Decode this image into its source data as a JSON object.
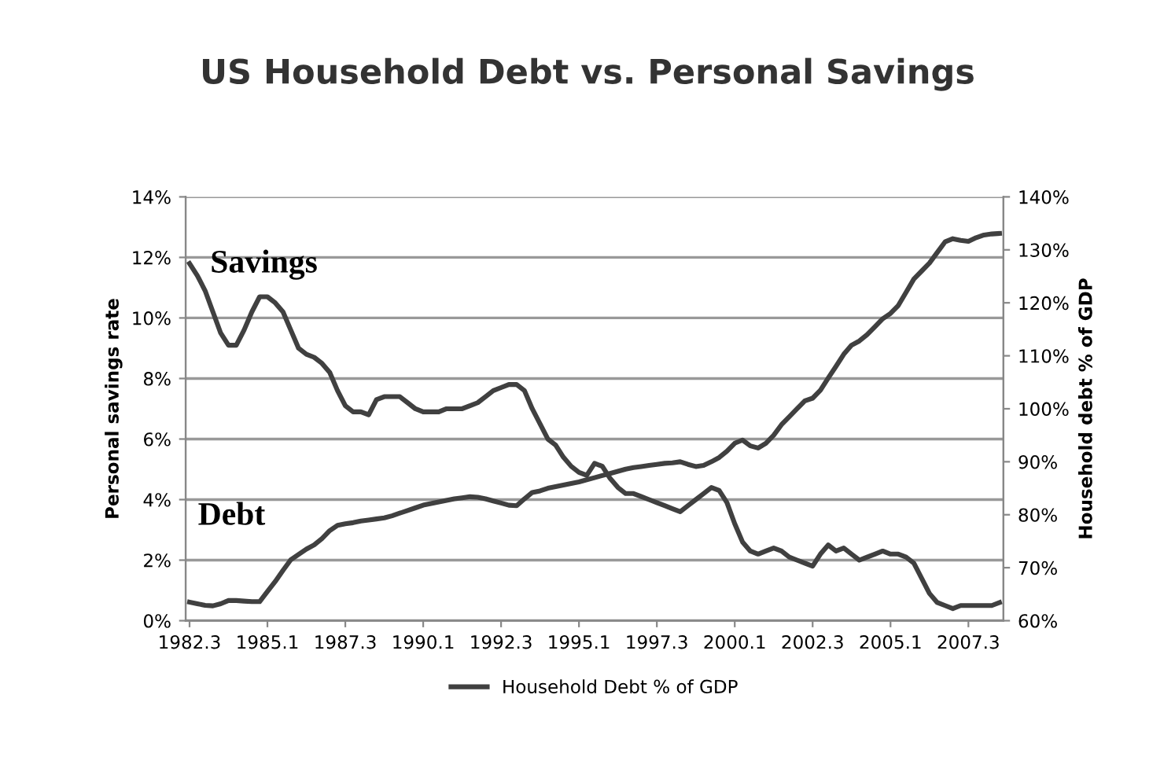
{
  "chart_data": {
    "type": "line",
    "title": "US Household Debt vs. Personal Savings",
    "ylabel": "Personal savings rate",
    "y2label": "Household debt % of GDP",
    "annotations": [
      "Savings",
      "Debt"
    ],
    "categories": [
      "1982.3",
      null,
      null,
      null,
      null,
      null,
      null,
      null,
      null,
      null,
      "1985.1",
      null,
      null,
      null,
      null,
      null,
      null,
      null,
      null,
      null,
      "1987.3",
      null,
      null,
      null,
      null,
      null,
      null,
      null,
      null,
      null,
      "1990.1",
      null,
      null,
      null,
      null,
      null,
      null,
      null,
      null,
      null,
      "1992.3",
      null,
      null,
      null,
      null,
      null,
      null,
      null,
      null,
      null,
      "1995.1",
      null,
      null,
      null,
      null,
      null,
      null,
      null,
      null,
      null,
      "1997.3",
      null,
      null,
      null,
      null,
      null,
      null,
      null,
      null,
      null,
      "2000.1",
      null,
      null,
      null,
      null,
      null,
      null,
      null,
      null,
      null,
      "2002.3",
      null,
      null,
      null,
      null,
      null,
      null,
      null,
      null,
      null,
      "2005.1",
      null,
      null,
      null,
      null,
      null,
      null,
      null,
      null,
      null,
      "2007.3",
      null,
      null,
      null,
      null
    ],
    "ylim": [
      0,
      14
    ],
    "yticks": [
      {
        "value": 0,
        "label": "0%"
      },
      {
        "value": 2,
        "label": "2%"
      },
      {
        "value": 4,
        "label": "4%"
      },
      {
        "value": 6,
        "label": "6%"
      },
      {
        "value": 8,
        "label": "8%"
      },
      {
        "value": 10,
        "label": "10%"
      },
      {
        "value": 12,
        "label": "12%"
      },
      {
        "value": 14,
        "label": "14%"
      }
    ],
    "y2lim": [
      60,
      140
    ],
    "y2ticks": [
      {
        "value": 60,
        "label": "60%"
      },
      {
        "value": 70,
        "label": "70%"
      },
      {
        "value": 80,
        "label": "80%"
      },
      {
        "value": 90,
        "label": "90%"
      },
      {
        "value": 100,
        "label": "100%"
      },
      {
        "value": 110,
        "label": "110%"
      },
      {
        "value": 120,
        "label": "120%"
      },
      {
        "value": 130,
        "label": "130%"
      },
      {
        "value": 140,
        "label": "140%"
      }
    ],
    "grid": "y",
    "legend": "bottom",
    "line_style": "solid",
    "marker": "none",
    "series": [
      {
        "color": "#404040",
        "values": [
          11.8,
          11.4,
          10.9,
          10.2,
          9.5,
          9.1,
          9.1,
          9.6,
          10.2,
          10.7,
          10.7,
          10.5,
          10.2,
          9.6,
          9.0,
          8.8,
          8.7,
          8.5,
          8.2,
          7.6,
          7.1,
          6.9,
          6.9,
          6.8,
          7.3,
          7.4,
          7.4,
          7.4,
          7.2,
          7.0,
          6.9,
          6.9,
          6.9,
          7.0,
          7.0,
          7.0,
          7.1,
          7.2,
          7.4,
          7.6,
          7.7,
          7.8,
          7.8,
          7.6,
          7.0,
          6.5,
          6.0,
          5.8,
          5.4,
          5.1,
          4.9,
          4.8,
          5.2,
          5.1,
          4.7,
          4.4,
          4.2,
          4.2,
          4.1,
          4.0,
          3.9,
          3.8,
          3.7,
          3.6,
          3.8,
          4.0,
          4.2,
          4.4,
          4.3,
          3.9,
          3.2,
          2.6,
          2.3,
          2.2,
          2.3,
          2.4,
          2.3,
          2.1,
          2.0,
          1.9,
          1.8,
          2.2,
          2.5,
          2.3,
          2.4,
          2.2,
          2.0,
          2.1,
          2.2,
          2.3,
          2.2,
          2.2,
          2.1,
          1.9,
          1.4,
          0.9,
          0.6,
          0.5,
          0.4,
          0.5,
          0.5,
          0.5,
          0.5,
          0.5,
          0.6
        ]
      },
      {
        "name": "Household Debt % of GDP",
        "color": "#404040",
        "axis": "y2",
        "values": [
          63.5,
          63.2,
          62.9,
          62.8,
          63.2,
          63.8,
          63.8,
          63.7,
          63.6,
          63.6,
          65.5,
          67.4,
          69.5,
          71.5,
          72.5,
          73.5,
          74.3,
          75.5,
          77.0,
          78.0,
          78.3,
          78.5,
          78.8,
          79.0,
          79.2,
          79.4,
          79.8,
          80.3,
          80.8,
          81.3,
          81.8,
          82.1,
          82.4,
          82.7,
          83.0,
          83.2,
          83.4,
          83.3,
          83.0,
          82.6,
          82.2,
          81.8,
          81.7,
          83.0,
          84.2,
          84.5,
          85.0,
          85.3,
          85.6,
          85.9,
          86.2,
          86.6,
          87.0,
          87.4,
          87.8,
          88.2,
          88.6,
          88.9,
          89.1,
          89.3,
          89.5,
          89.7,
          89.8,
          90.0,
          89.5,
          89.1,
          89.3,
          90.0,
          90.8,
          92.0,
          93.5,
          94.1,
          93.0,
          92.6,
          93.5,
          95.0,
          97.0,
          98.5,
          100.0,
          101.5,
          102.0,
          103.5,
          105.8,
          108.0,
          110.3,
          112.0,
          112.8,
          114.0,
          115.5,
          117.0,
          118.0,
          119.5,
          122.0,
          124.5,
          126.0,
          127.5,
          129.5,
          131.5,
          132.1,
          131.8,
          131.6,
          132.3,
          132.8,
          133.0,
          133.1
        ]
      }
    ]
  }
}
